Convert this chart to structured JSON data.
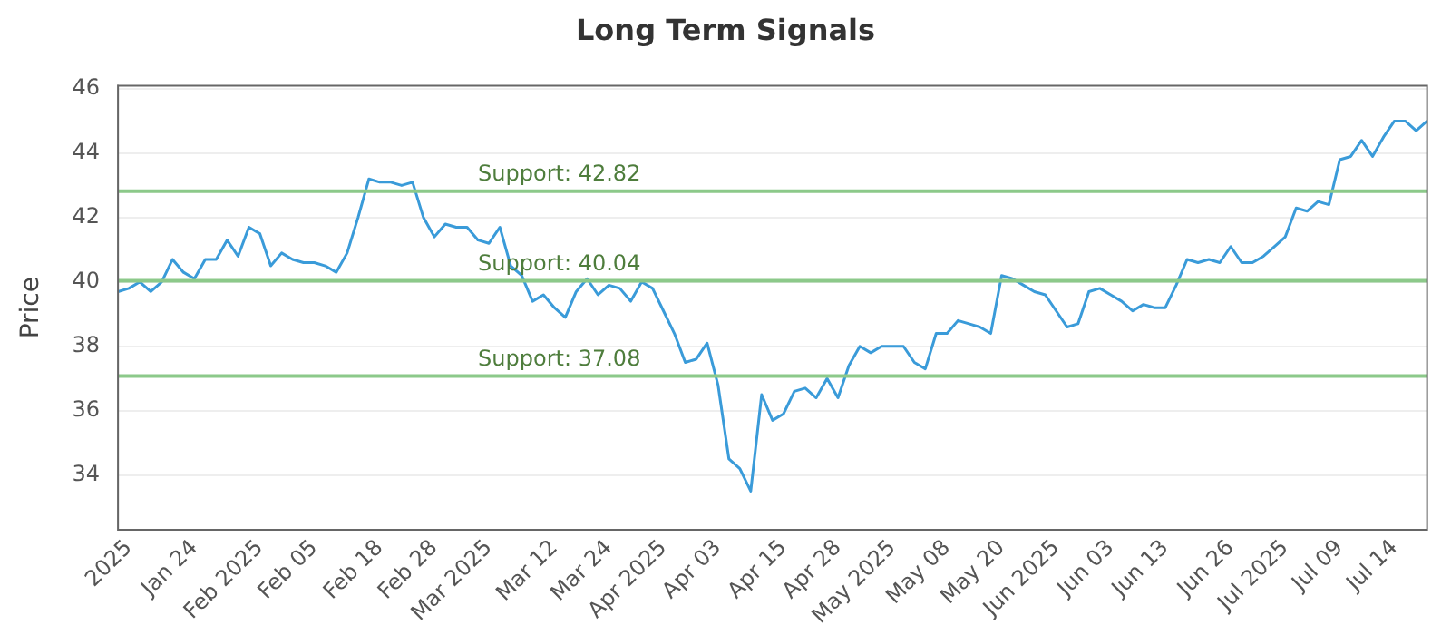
{
  "chart_data": {
    "type": "line",
    "title": "Long Term Signals",
    "ylabel": "Price",
    "categories": [
      null,
      "2025",
      null,
      null,
      null,
      null,
      null,
      "Jan 24",
      null,
      null,
      null,
      null,
      null,
      "Feb 2025",
      null,
      null,
      null,
      null,
      "Feb 05",
      null,
      null,
      null,
      null,
      null,
      "Feb 18",
      null,
      null,
      null,
      null,
      "Feb 28",
      null,
      null,
      null,
      null,
      "Mar 2025",
      null,
      null,
      null,
      null,
      null,
      "Mar 12",
      null,
      null,
      null,
      null,
      "Mar 24",
      null,
      null,
      null,
      null,
      "Apr 2025",
      null,
      null,
      null,
      null,
      "Apr 03",
      null,
      null,
      null,
      null,
      null,
      "Apr 15",
      null,
      null,
      null,
      null,
      "Apr 28",
      null,
      null,
      null,
      null,
      "May 2025",
      null,
      null,
      null,
      null,
      "May 08",
      null,
      null,
      null,
      null,
      "May 20",
      null,
      null,
      null,
      null,
      "Jun 2025",
      null,
      null,
      null,
      null,
      "Jun 03",
      null,
      null,
      null,
      null,
      "Jun 13",
      null,
      null,
      null,
      null,
      null,
      "Jun 26",
      null,
      null,
      null,
      null,
      "Jul 2025",
      null,
      null,
      null,
      null,
      "Jul 09",
      null,
      null,
      null,
      null,
      "Jul 14",
      null,
      null,
      null
    ],
    "series": [
      {
        "color": "#3a9bd9",
        "values": [
          39.7,
          39.8,
          40.0,
          39.7,
          40.0,
          40.7,
          40.3,
          40.1,
          40.7,
          40.7,
          41.3,
          40.8,
          41.7,
          41.5,
          40.5,
          40.9,
          40.7,
          40.6,
          40.6,
          40.5,
          40.3,
          40.9,
          42.0,
          43.2,
          43.1,
          43.1,
          43.0,
          43.1,
          42.0,
          41.4,
          41.8,
          41.7,
          41.7,
          41.3,
          41.2,
          41.7,
          40.5,
          40.2,
          39.4,
          39.6,
          39.2,
          38.9,
          39.7,
          40.1,
          39.6,
          39.9,
          39.8,
          39.4,
          40.0,
          39.8,
          39.1,
          38.4,
          37.5,
          37.6,
          38.1,
          36.8,
          34.5,
          34.2,
          33.5,
          36.5,
          35.7,
          35.9,
          36.6,
          36.7,
          36.4,
          37.0,
          36.4,
          37.4,
          38.0,
          37.8,
          38.0,
          38.0,
          38.0,
          37.5,
          37.3,
          38.4,
          38.4,
          38.8,
          38.7,
          38.6,
          38.4,
          40.2,
          40.1,
          39.9,
          39.7,
          39.6,
          39.1,
          38.6,
          38.7,
          39.7,
          39.8,
          39.6,
          39.4,
          39.1,
          39.3,
          39.2,
          39.2,
          39.9,
          40.7,
          40.6,
          40.7,
          40.6,
          41.1,
          40.6,
          40.6,
          40.8,
          41.1,
          41.4,
          42.3,
          42.2,
          42.5,
          42.4,
          43.8,
          43.9,
          44.4,
          43.9,
          44.5,
          45.0,
          45.0,
          44.7,
          45.0
        ]
      }
    ],
    "ylim": [
      32.3,
      46.1
    ],
    "yticks": [
      34,
      36,
      38,
      40,
      42,
      44,
      46
    ],
    "grid": "y",
    "marker": "none",
    "line_style": "solid",
    "ref_lines": [
      {
        "axis": "y",
        "value": 42.82,
        "label": "Support: 42.82",
        "color": "#8cc98a"
      },
      {
        "axis": "y",
        "value": 40.04,
        "label": "Support: 40.04",
        "color": "#8cc98a"
      },
      {
        "axis": "y",
        "value": 37.08,
        "label": "Support: 37.08",
        "color": "#8cc98a"
      }
    ]
  }
}
